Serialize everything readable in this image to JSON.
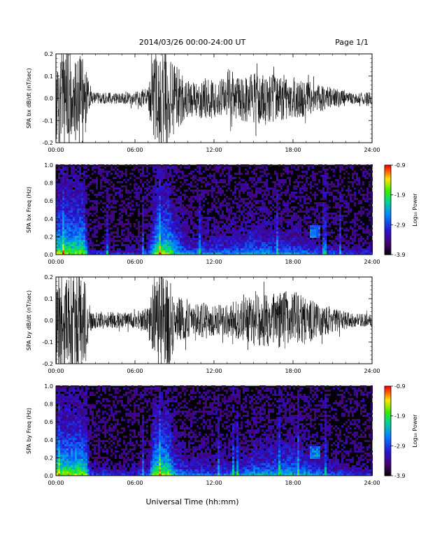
{
  "header": {
    "title": "2014/03/26  00:00-24:00 UT",
    "page": "Page 1/1"
  },
  "footer": {
    "xlabel": "Universal Time (hh:mm)"
  },
  "chart_data": [
    {
      "type": "line",
      "ylabel": "SPA bx dB/dt (nT/sec)",
      "xlim": [
        0,
        24
      ],
      "ylim": [
        -0.2,
        0.2
      ],
      "x_ticks": [
        "00:00",
        "06:00",
        "12:00",
        "18:00",
        "24:00"
      ],
      "y_ticks": [
        "-0.2",
        "-0.1",
        "0.0",
        "0.1",
        "0.2"
      ],
      "envelope": {
        "hours": [
          0,
          0.5,
          1,
          1.5,
          2,
          2.2,
          2.5,
          3,
          4,
          5,
          6,
          7,
          7.3,
          7.6,
          8,
          8.5,
          9,
          10,
          11,
          12,
          13,
          14,
          15,
          16,
          17,
          18,
          19,
          20,
          21,
          22,
          23,
          24
        ],
        "amplitude": [
          0.22,
          0.22,
          0.22,
          0.22,
          0.22,
          0.2,
          0.04,
          0.025,
          0.025,
          0.025,
          0.03,
          0.05,
          0.15,
          0.22,
          0.22,
          0.22,
          0.16,
          0.08,
          0.09,
          0.09,
          0.09,
          0.1,
          0.12,
          0.11,
          0.1,
          0.1,
          0.08,
          0.06,
          0.05,
          0.03,
          0.025,
          0.03
        ]
      }
    },
    {
      "type": "heatmap",
      "ylabel": "SPA bx Freq (Hz)",
      "xlim": [
        0,
        24
      ],
      "ylim": [
        0,
        1.0
      ],
      "x_ticks": [
        "00:00",
        "06:00",
        "12:00",
        "18:00",
        "24:00"
      ],
      "y_ticks": [
        "0.0",
        "0.2",
        "0.4",
        "0.6",
        "0.8",
        "1.0"
      ],
      "colorbar": {
        "label": "Log₁₀ Power",
        "min": -3.9,
        "max": -0.9,
        "ticks": [
          "-0.9",
          "-1.9",
          "-2.9",
          "-3.9"
        ]
      }
    },
    {
      "type": "line",
      "ylabel": "SPA by dB/dt (nT/sec)",
      "xlim": [
        0,
        24
      ],
      "ylim": [
        -0.2,
        0.2
      ],
      "x_ticks": [
        "00:00",
        "06:00",
        "12:00",
        "18:00",
        "24:00"
      ],
      "y_ticks": [
        "-0.2",
        "-0.1",
        "0.0",
        "0.1",
        "0.2"
      ],
      "envelope": {
        "hours": [
          0,
          0.5,
          1,
          1.5,
          2,
          2.3,
          2.6,
          3,
          4,
          5,
          6,
          7,
          7.3,
          7.6,
          8,
          8.5,
          9,
          10,
          11,
          12,
          13,
          14,
          15,
          16,
          17,
          18,
          19,
          20,
          21,
          22,
          23,
          24
        ],
        "amplitude": [
          0.22,
          0.22,
          0.22,
          0.22,
          0.22,
          0.2,
          0.05,
          0.04,
          0.04,
          0.035,
          0.04,
          0.06,
          0.18,
          0.22,
          0.22,
          0.22,
          0.13,
          0.08,
          0.08,
          0.07,
          0.08,
          0.09,
          0.12,
          0.12,
          0.13,
          0.14,
          0.11,
          0.08,
          0.06,
          0.04,
          0.03,
          0.03
        ]
      }
    },
    {
      "type": "heatmap",
      "ylabel": "SPA by Freq (Hz)",
      "xlim": [
        0,
        24
      ],
      "ylim": [
        0,
        1.0
      ],
      "x_ticks": [
        "00:00",
        "06:00",
        "12:00",
        "18:00",
        "24:00"
      ],
      "y_ticks": [
        "0.0",
        "0.2",
        "0.4",
        "0.6",
        "0.8",
        "1.0"
      ],
      "colorbar": {
        "label": "Log₁₀ Power",
        "min": -3.9,
        "max": -0.9,
        "ticks": [
          "-0.9",
          "-1.9",
          "-2.9",
          "-3.9"
        ]
      }
    }
  ]
}
